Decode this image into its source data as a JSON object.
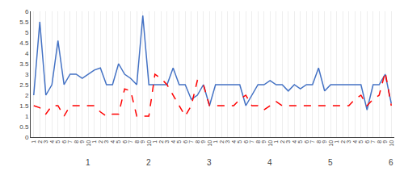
{
  "chart_data": {
    "type": "line",
    "categories": [
      "1",
      "2",
      "3",
      "4",
      "5",
      "6",
      "7",
      "8",
      "9",
      "10",
      "1",
      "2",
      "3",
      "4",
      "5",
      "6",
      "7",
      "8",
      "9",
      "10",
      "1",
      "2",
      "3",
      "4",
      "5",
      "6",
      "7",
      "8",
      "9",
      "10",
      "1",
      "2",
      "3",
      "4",
      "5",
      "6",
      "7",
      "8",
      "9",
      "10",
      "1",
      "2",
      "3",
      "4",
      "5",
      "6",
      "7",
      "8",
      "9",
      "10",
      "1",
      "2",
      "3",
      "4",
      "5",
      "6",
      "7",
      "8",
      "9",
      "10"
    ],
    "series": [
      {
        "color": "#4472C4",
        "line_style": "solid",
        "values": [
          2.0,
          5.5,
          2.0,
          2.5,
          4.6,
          2.5,
          3.0,
          3.0,
          2.8,
          3.0,
          3.2,
          3.3,
          2.5,
          2.5,
          3.5,
          3.0,
          2.8,
          2.5,
          5.8,
          2.5,
          2.5,
          2.5,
          2.5,
          3.3,
          2.5,
          2.5,
          1.8,
          2.0,
          2.5,
          1.5,
          2.5,
          2.5,
          2.5,
          2.5,
          2.5,
          1.5,
          2.0,
          2.5,
          2.5,
          2.7,
          2.5,
          2.5,
          2.2,
          2.5,
          2.3,
          2.5,
          2.5,
          3.3,
          2.2,
          2.5,
          2.5,
          2.5,
          2.5,
          2.5,
          2.5,
          1.3,
          2.5,
          2.5,
          3.0,
          1.6
        ]
      },
      {
        "color": "#FF0000",
        "line_style": "dashed",
        "values": [
          1.5,
          1.4,
          1.1,
          1.5,
          1.5,
          1.0,
          1.5,
          1.5,
          1.5,
          1.5,
          1.5,
          1.2,
          1.0,
          1.1,
          1.1,
          2.3,
          2.2,
          1.0,
          1.0,
          1.0,
          3.0,
          2.8,
          2.5,
          2.0,
          1.5,
          1.0,
          1.5,
          2.7,
          2.5,
          1.5,
          1.5,
          1.5,
          1.5,
          1.5,
          1.8,
          2.0,
          1.5,
          1.5,
          1.3,
          1.5,
          1.7,
          1.5,
          1.5,
          1.5,
          1.5,
          1.5,
          1.5,
          1.5,
          1.5,
          1.5,
          1.5,
          1.5,
          1.5,
          1.8,
          2.0,
          1.5,
          1.8,
          2.0,
          3.1,
          1.5
        ]
      }
    ],
    "annotations": [
      {
        "text": "1",
        "x": 9
      },
      {
        "text": "2",
        "x": 19
      },
      {
        "text": "3",
        "x": 29
      },
      {
        "text": "4",
        "x": 39
      },
      {
        "text": "5",
        "x": 49
      },
      {
        "text": "6",
        "x": 59
      }
    ],
    "ylim": [
      0,
      6
    ],
    "yticks": [
      0,
      0.5,
      1,
      1.5,
      2,
      2.5,
      3,
      3.5,
      4,
      4.5,
      5,
      5.5,
      6
    ],
    "grid": "x"
  }
}
